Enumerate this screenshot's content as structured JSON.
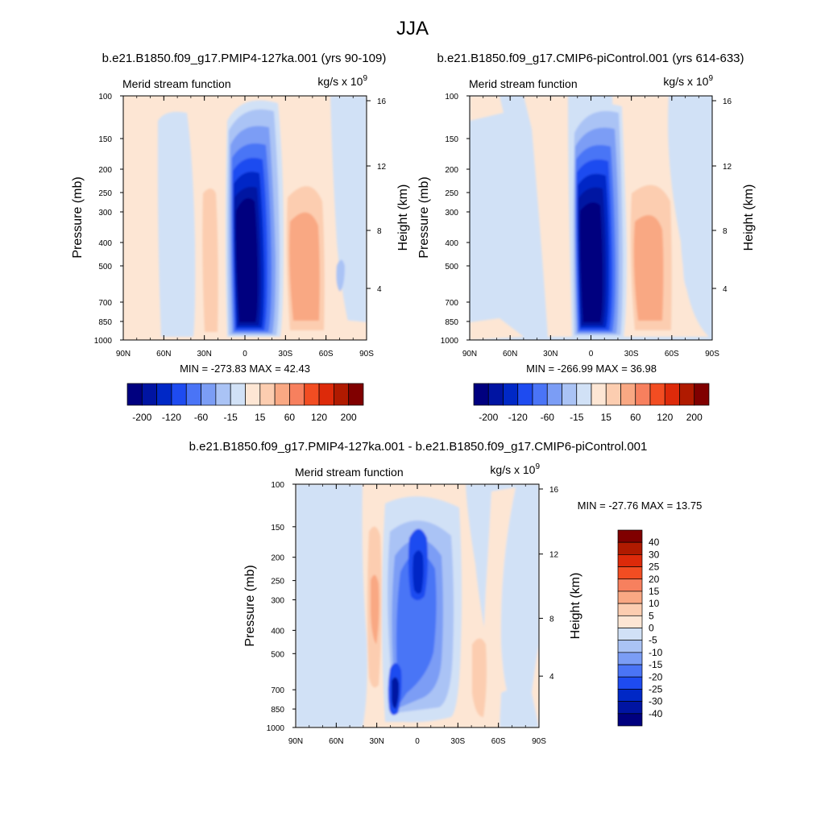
{
  "main_title": "JJA",
  "colors": {
    "neg": [
      "#00007f",
      "#0014a2",
      "#0028c6",
      "#1e4bf0",
      "#4a74f6",
      "#7b9df5",
      "#aac3f5",
      "#d1e1f6"
    ],
    "pos": [
      "#fde6d4",
      "#fccdb0",
      "#f9a883",
      "#f7805e",
      "#f24d22",
      "#dd2a0a",
      "#b01a00",
      "#800000"
    ]
  },
  "chart_data": [
    {
      "type": "contour",
      "id": "p1",
      "title": "b.e21.B1850.f09_g17.PMIP4-127ka.001 (yrs 90-109)",
      "left_label": "Merid stream function",
      "units_label": "kg/s x 10",
      "units_exp": "9",
      "xlabel": "",
      "ylabel": "Pressure (mb)",
      "ylabel_right": "Height (km)",
      "x_ticks": [
        "90N",
        "60N",
        "30N",
        "0",
        "30S",
        "60S",
        "90S"
      ],
      "y_ticks": [
        "100",
        "150",
        "200",
        "250",
        "300",
        "400",
        "500",
        "700",
        "850",
        "1000"
      ],
      "y_right_ticks": [
        "16",
        "12",
        "8",
        "4"
      ],
      "stats": "MIN = -273.83  MAX =  42.43",
      "colorbar_labels": [
        "-200",
        "-120",
        "-60",
        "-15",
        "15",
        "60",
        "120",
        "200"
      ]
    },
    {
      "type": "contour",
      "id": "p2",
      "title": "b.e21.B1850.f09_g17.CMIP6-piControl.001 (yrs 614-633)",
      "left_label": "Merid stream function",
      "units_label": "kg/s x 10",
      "units_exp": "9",
      "xlabel": "",
      "ylabel": "Pressure (mb)",
      "ylabel_right": "Height (km)",
      "x_ticks": [
        "90N",
        "60N",
        "30N",
        "0",
        "30S",
        "60S",
        "90S"
      ],
      "y_ticks": [
        "100",
        "150",
        "200",
        "250",
        "300",
        "400",
        "500",
        "700",
        "850",
        "1000"
      ],
      "y_right_ticks": [
        "16",
        "12",
        "8",
        "4"
      ],
      "stats": "MIN = -266.99  MAX =  36.98",
      "colorbar_labels": [
        "-200",
        "-120",
        "-60",
        "-15",
        "15",
        "60",
        "120",
        "200"
      ]
    },
    {
      "type": "contour",
      "id": "p3",
      "title": "b.e21.B1850.f09_g17.PMIP4-127ka.001 - b.e21.B1850.f09_g17.CMIP6-piControl.001",
      "left_label": "Merid stream function",
      "units_label": "kg/s x 10",
      "units_exp": "9",
      "xlabel": "",
      "ylabel": "Pressure (mb)",
      "ylabel_right": "Height (km)",
      "x_ticks": [
        "90N",
        "60N",
        "30N",
        "0",
        "30S",
        "60S",
        "90S"
      ],
      "y_ticks": [
        "100",
        "150",
        "200",
        "250",
        "300",
        "400",
        "500",
        "700",
        "850",
        "1000"
      ],
      "y_right_ticks": [
        "16",
        "12",
        "8",
        "4"
      ],
      "stats": "MIN = -27.76  MAX =  13.75",
      "colorbar_labels": [
        "40",
        "30",
        "25",
        "20",
        "15",
        "10",
        "5",
        "0",
        "-5",
        "-10",
        "-15",
        "-20",
        "-25",
        "-30",
        "-40"
      ]
    }
  ]
}
